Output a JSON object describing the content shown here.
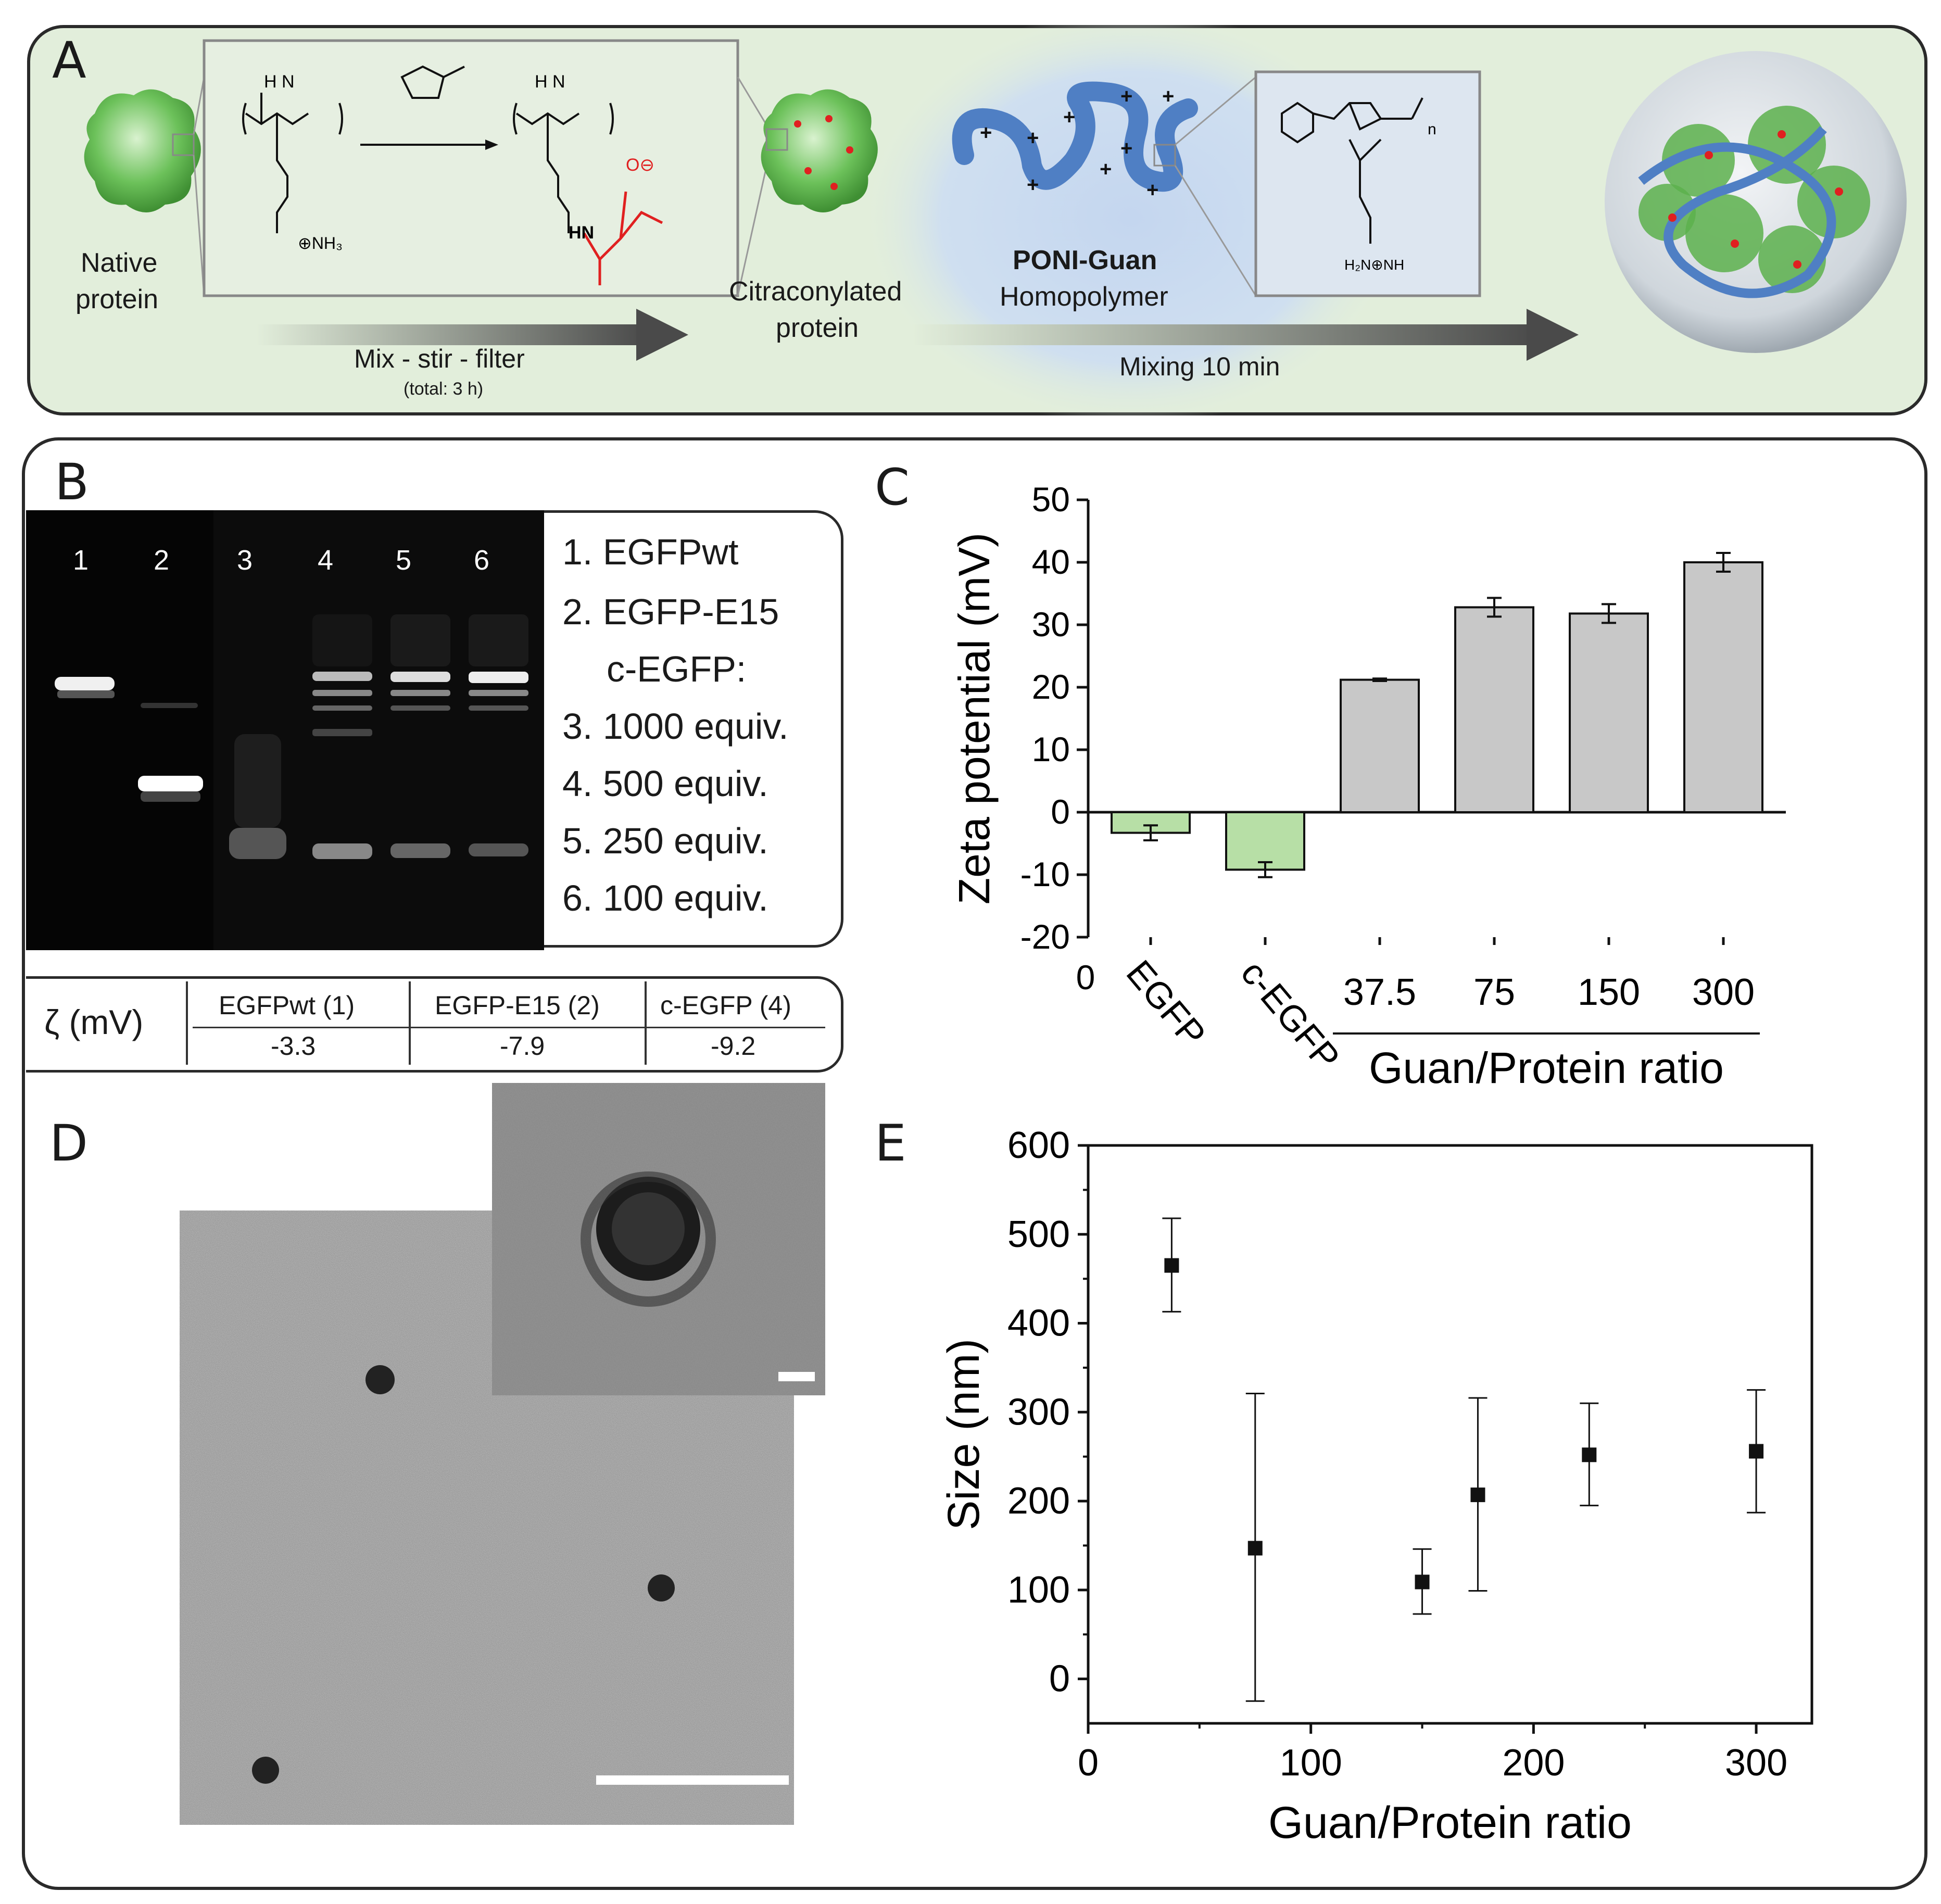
{
  "panel_a": {
    "letter": "A",
    "native_protein_label": [
      "Native",
      "protein"
    ],
    "step1_label": "Mix - stir - filter",
    "step1_sublabel": "(total: 3 h)",
    "citraconylated_label": [
      "Citraconylated",
      "protein"
    ],
    "polymer_name": "PONI-Guan",
    "polymer_type": "Homopolymer",
    "step2_label": "Mixing 10 min",
    "chem_labels": {
      "nh": "H  N",
      "nh3": "⊕NH₃",
      "hn": "HN",
      "o_minus": "O⊖",
      "o": "O",
      "n_subscript": "n",
      "guan": "H₂N⊕NH"
    }
  },
  "panel_b": {
    "letter": "B",
    "lanes": [
      "1",
      "2",
      "3",
      "4",
      "5",
      "6"
    ],
    "legend": [
      "1. EGFPwt",
      "2. EGFP-E15",
      "c-EGFP:",
      "3. 1000 equiv.",
      "4. 500 equiv.",
      "5. 250 equiv.",
      "6. 100 equiv."
    ],
    "zeta_table": {
      "row_label": "ζ (mV)",
      "headers": [
        "EGFPwt (1)",
        "EGFP-E15 (2)",
        "c-EGFP (4)"
      ],
      "values": [
        "-3.3",
        "-7.9",
        "-9.2"
      ]
    }
  },
  "panel_c": {
    "letter": "C",
    "chart_data": {
      "type": "bar",
      "ylabel": "Zeta potential (mV)",
      "xlabel": "Guan/Protein ratio",
      "ylim": [
        -20,
        50
      ],
      "yticks": [
        "-20",
        "-10",
        "0",
        "10",
        "20",
        "30",
        "40",
        "50"
      ],
      "x_origin_label": "0",
      "categories": [
        "EGFP",
        "c-EGFP",
        "37.5",
        "75",
        "150",
        "300"
      ],
      "values": [
        -3.3,
        -9.2,
        21.2,
        32.8,
        31.8,
        40.0
      ],
      "errors": [
        1.2,
        1.2,
        0.2,
        1.5,
        1.5,
        1.5
      ],
      "colors": [
        "#b7dfa6",
        "#b7dfa6",
        "#c8c8c8",
        "#c8c8c8",
        "#c8c8c8",
        "#c8c8c8"
      ],
      "grouped_categories": [
        "37.5",
        "75",
        "150",
        "300"
      ]
    }
  },
  "panel_d": {
    "letter": "D"
  },
  "panel_e": {
    "letter": "E",
    "chart_data": {
      "type": "scatter",
      "xlabel": "Guan/Protein ratio",
      "ylabel": "Size (nm)",
      "xlim": [
        0,
        325
      ],
      "ylim": [
        -50,
        600
      ],
      "xticks": [
        "0",
        "100",
        "200",
        "300"
      ],
      "yticks": [
        "0",
        "100",
        "200",
        "300",
        "400",
        "500",
        "600"
      ],
      "points": [
        {
          "x": 37.5,
          "y": 465,
          "err_low": 413,
          "err_high": 518
        },
        {
          "x": 75,
          "y": 147,
          "err_low": -25,
          "err_high": 321
        },
        {
          "x": 150,
          "y": 109,
          "err_low": 73,
          "err_high": 146
        },
        {
          "x": 175,
          "y": 207,
          "err_low": 99,
          "err_high": 316
        },
        {
          "x": 225,
          "y": 252,
          "err_low": 195,
          "err_high": 310
        },
        {
          "x": 300,
          "y": 256,
          "err_low": 187,
          "err_high": 325
        }
      ]
    }
  },
  "colors": {
    "panel_a_bg": "#e2eedb",
    "blue_halo": "#c9daf0",
    "polymer_blue": "#4f7fc4",
    "protein_green": "#6cc15a",
    "citraconyl_red": "#e02020",
    "arrow_dark": "#555555"
  }
}
